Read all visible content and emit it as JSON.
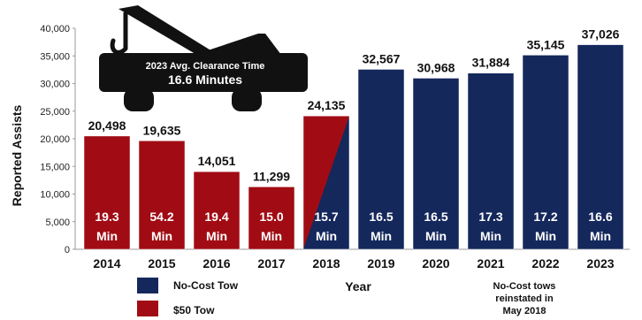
{
  "colors": {
    "tow50": "#a10c14",
    "nocost": "#15285c",
    "truck": "#111111"
  },
  "truck": {
    "label_title": "2023 Avg. Clearance Time",
    "label_value": "16.6 Minutes"
  },
  "legend": [
    {
      "key": "nocost",
      "label": "No-Cost Tow"
    },
    {
      "key": "tow50",
      "label": "$50 Tow"
    }
  ],
  "note": [
    "No-Cost tows",
    "reinstated in",
    "May 2018"
  ],
  "chart_data": {
    "type": "bar",
    "title": "",
    "xlabel": "Year",
    "ylabel": "Reported Assists",
    "ylim": [
      0,
      40000
    ],
    "yticks": [
      "0",
      "5,000",
      "10,000",
      "15,000",
      "20,000",
      "25,000",
      "30,000",
      "35,000",
      "40,000"
    ],
    "grid": false,
    "legend_position": "bottom-left",
    "categories": [
      "2014",
      "2015",
      "2016",
      "2017",
      "2018",
      "2019",
      "2020",
      "2021",
      "2022",
      "2023"
    ],
    "values": [
      20498,
      19635,
      14051,
      11299,
      24135,
      32567,
      30968,
      31884,
      35145,
      37026
    ],
    "value_labels": [
      "20,498",
      "19,635",
      "14,051",
      "11,299",
      "24,135",
      "32,567",
      "30,968",
      "31,884",
      "35,145",
      "37,026"
    ],
    "clearance_minutes": [
      "19.3",
      "54.2",
      "19.4",
      "15.0",
      "15.7",
      "16.5",
      "16.5",
      "17.3",
      "17.2",
      "16.6"
    ],
    "clearance_unit": "Min",
    "tow_type": [
      "tow50",
      "tow50",
      "tow50",
      "tow50",
      "split",
      "nocost",
      "nocost",
      "nocost",
      "nocost",
      "nocost"
    ]
  }
}
